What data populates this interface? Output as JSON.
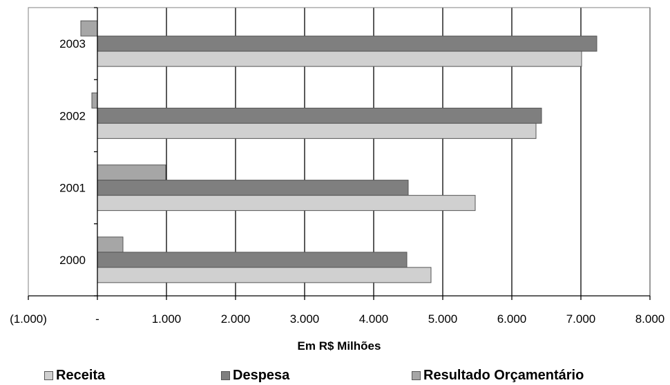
{
  "chart_data": {
    "type": "bar",
    "orientation": "horizontal",
    "categories": [
      "2000",
      "2001",
      "2002",
      "2003"
    ],
    "series": [
      {
        "name": "Receita",
        "color": "#d0d0d0",
        "values": [
          4830,
          5470,
          6350,
          7010
        ]
      },
      {
        "name": "Despesa",
        "color": "#7f7f7f",
        "values": [
          4480,
          4500,
          6430,
          7230
        ]
      },
      {
        "name": "Resultado Orçamentário",
        "color": "#a6a6a6",
        "values": [
          370,
          990,
          -80,
          -240
        ]
      }
    ],
    "xlabel": "Em R$ Milhões",
    "xlim": [
      -1000,
      8000
    ],
    "xticks": [
      {
        "value": -1000,
        "label": "(1.000)"
      },
      {
        "value": 0,
        "label": "-"
      },
      {
        "value": 1000,
        "label": "1.000"
      },
      {
        "value": 2000,
        "label": "2.000"
      },
      {
        "value": 3000,
        "label": "3.000"
      },
      {
        "value": 4000,
        "label": "4.000"
      },
      {
        "value": 5000,
        "label": "5.000"
      },
      {
        "value": 6000,
        "label": "6.000"
      },
      {
        "value": 7000,
        "label": "7.000"
      },
      {
        "value": 8000,
        "label": "8.000"
      }
    ],
    "grid": true,
    "legend_position": "bottom"
  }
}
